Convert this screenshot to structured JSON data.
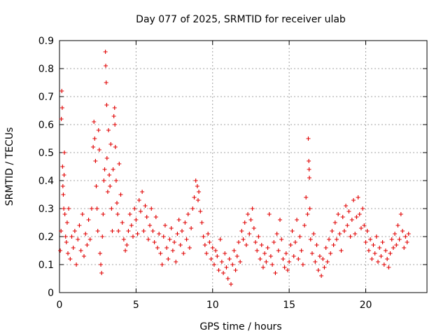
{
  "chart_data": {
    "type": "scatter",
    "title": "Day 077 of 2025, SRMTID for receiver ulab",
    "xlabel": "GPS time / hours",
    "ylabel": "SRMTID / TECUs",
    "xlim": [
      0,
      24
    ],
    "ylim": [
      0,
      0.9
    ],
    "xticks": [
      0,
      5,
      10,
      15,
      20
    ],
    "yticks": [
      0,
      0.1,
      0.2,
      0.3,
      0.4,
      0.5,
      0.6,
      0.7,
      0.8,
      0.9
    ],
    "xtick_labels": [
      "0",
      "5",
      "10",
      "15",
      "20"
    ],
    "ytick_labels": [
      "0",
      "0.1",
      "0.2",
      "0.3",
      "0.4",
      "0.5",
      "0.6",
      "0.7",
      "0.8",
      "0.9"
    ],
    "grid": true,
    "marker": "+",
    "color": "#e00000",
    "series": [
      {
        "name": "SRMTID",
        "points": [
          [
            0.05,
            0.15
          ],
          [
            0.1,
            0.22
          ],
          [
            0.12,
            0.62
          ],
          [
            0.15,
            0.72
          ],
          [
            0.18,
            0.66
          ],
          [
            0.2,
            0.45
          ],
          [
            0.22,
            0.38
          ],
          [
            0.25,
            0.35
          ],
          [
            0.28,
            0.3
          ],
          [
            0.3,
            0.42
          ],
          [
            0.32,
            0.5
          ],
          [
            0.35,
            0.28
          ],
          [
            0.4,
            0.2
          ],
          [
            0.45,
            0.18
          ],
          [
            0.5,
            0.25
          ],
          [
            0.55,
            0.14
          ],
          [
            0.6,
            0.3
          ],
          [
            0.7,
            0.12
          ],
          [
            0.8,
            0.2
          ],
          [
            0.9,
            0.16
          ],
          [
            1.0,
            0.22
          ],
          [
            1.1,
            0.1
          ],
          [
            1.2,
            0.19
          ],
          [
            1.3,
            0.24
          ],
          [
            1.4,
            0.15
          ],
          [
            1.5,
            0.28
          ],
          [
            1.6,
            0.13
          ],
          [
            1.7,
            0.21
          ],
          [
            1.8,
            0.17
          ],
          [
            1.9,
            0.26
          ],
          [
            2.0,
            0.19
          ],
          [
            2.1,
            0.3
          ],
          [
            2.2,
            0.52
          ],
          [
            2.25,
            0.61
          ],
          [
            2.3,
            0.55
          ],
          [
            2.35,
            0.47
          ],
          [
            2.4,
            0.38
          ],
          [
            2.45,
            0.3
          ],
          [
            2.5,
            0.22
          ],
          [
            2.55,
            0.58
          ],
          [
            2.6,
            0.51
          ],
          [
            2.65,
            0.14
          ],
          [
            2.7,
            0.1
          ],
          [
            2.75,
            0.07
          ],
          [
            2.8,
            0.2
          ],
          [
            2.85,
            0.28
          ],
          [
            2.9,
            0.4
          ],
          [
            2.95,
            0.44
          ],
          [
            3.0,
            0.86
          ],
          [
            3.02,
            0.81
          ],
          [
            3.05,
            0.75
          ],
          [
            3.08,
            0.67
          ],
          [
            3.1,
            0.48
          ],
          [
            3.15,
            0.36
          ],
          [
            3.2,
            0.58
          ],
          [
            3.25,
            0.42
          ],
          [
            3.3,
            0.38
          ],
          [
            3.35,
            0.53
          ],
          [
            3.4,
            0.3
          ],
          [
            3.45,
            0.22
          ],
          [
            3.5,
            0.44
          ],
          [
            3.55,
            0.63
          ],
          [
            3.6,
            0.66
          ],
          [
            3.62,
            0.6
          ],
          [
            3.65,
            0.52
          ],
          [
            3.7,
            0.4
          ],
          [
            3.75,
            0.32
          ],
          [
            3.8,
            0.28
          ],
          [
            3.85,
            0.22
          ],
          [
            3.9,
            0.46
          ],
          [
            4.0,
            0.35
          ],
          [
            4.1,
            0.25
          ],
          [
            4.2,
            0.19
          ],
          [
            4.3,
            0.15
          ],
          [
            4.4,
            0.17
          ],
          [
            4.5,
            0.22
          ],
          [
            4.6,
            0.28
          ],
          [
            4.7,
            0.24
          ],
          [
            4.8,
            0.2
          ],
          [
            4.9,
            0.3
          ],
          [
            5.0,
            0.26
          ],
          [
            5.1,
            0.21
          ],
          [
            5.2,
            0.33
          ],
          [
            5.3,
            0.29
          ],
          [
            5.4,
            0.36
          ],
          [
            5.5,
            0.22
          ],
          [
            5.6,
            0.31
          ],
          [
            5.7,
            0.27
          ],
          [
            5.8,
            0.19
          ],
          [
            5.9,
            0.24
          ],
          [
            6.0,
            0.3
          ],
          [
            6.1,
            0.22
          ],
          [
            6.2,
            0.18
          ],
          [
            6.3,
            0.27
          ],
          [
            6.4,
            0.16
          ],
          [
            6.5,
            0.21
          ],
          [
            6.6,
            0.14
          ],
          [
            6.7,
            0.1
          ],
          [
            6.8,
            0.2
          ],
          [
            6.9,
            0.24
          ],
          [
            7.0,
            0.16
          ],
          [
            7.1,
            0.12
          ],
          [
            7.2,
            0.19
          ],
          [
            7.3,
            0.23
          ],
          [
            7.4,
            0.15
          ],
          [
            7.5,
            0.18
          ],
          [
            7.6,
            0.11
          ],
          [
            7.7,
            0.21
          ],
          [
            7.8,
            0.26
          ],
          [
            7.9,
            0.17
          ],
          [
            8.0,
            0.22
          ],
          [
            8.1,
            0.14
          ],
          [
            8.2,
            0.25
          ],
          [
            8.3,
            0.19
          ],
          [
            8.4,
            0.28
          ],
          [
            8.5,
            0.16
          ],
          [
            8.6,
            0.23
          ],
          [
            8.7,
            0.3
          ],
          [
            8.8,
            0.34
          ],
          [
            8.9,
            0.4
          ],
          [
            9.0,
            0.38
          ],
          [
            9.05,
            0.33
          ],
          [
            9.1,
            0.36
          ],
          [
            9.2,
            0.29
          ],
          [
            9.3,
            0.25
          ],
          [
            9.4,
            0.2
          ],
          [
            9.5,
            0.17
          ],
          [
            9.6,
            0.14
          ],
          [
            9.7,
            0.21
          ],
          [
            9.8,
            0.18
          ],
          [
            9.9,
            0.12
          ],
          [
            10.0,
            0.16
          ],
          [
            10.1,
            0.1
          ],
          [
            10.2,
            0.15
          ],
          [
            10.3,
            0.13
          ],
          [
            10.4,
            0.08
          ],
          [
            10.5,
            0.19
          ],
          [
            10.6,
            0.11
          ],
          [
            10.7,
            0.07
          ],
          [
            10.8,
            0.14
          ],
          [
            10.9,
            0.09
          ],
          [
            11.0,
            0.05
          ],
          [
            11.1,
            0.12
          ],
          [
            11.2,
            0.03
          ],
          [
            11.3,
            0.1
          ],
          [
            11.4,
            0.15
          ],
          [
            11.5,
            0.08
          ],
          [
            11.6,
            0.13
          ],
          [
            11.7,
            0.18
          ],
          [
            11.8,
            0.11
          ],
          [
            11.9,
            0.22
          ],
          [
            12.0,
            0.19
          ],
          [
            12.1,
            0.25
          ],
          [
            12.2,
            0.17
          ],
          [
            12.3,
            0.28
          ],
          [
            12.4,
            0.21
          ],
          [
            12.5,
            0.26
          ],
          [
            12.6,
            0.3
          ],
          [
            12.7,
            0.23
          ],
          [
            12.8,
            0.18
          ],
          [
            12.9,
            0.15
          ],
          [
            13.0,
            0.2
          ],
          [
            13.1,
            0.12
          ],
          [
            13.2,
            0.17
          ],
          [
            13.3,
            0.09
          ],
          [
            13.4,
            0.14
          ],
          [
            13.5,
            0.11
          ],
          [
            13.6,
            0.16
          ],
          [
            13.7,
            0.28
          ],
          [
            13.8,
            0.13
          ],
          [
            13.9,
            0.1
          ],
          [
            14.0,
            0.18
          ],
          [
            14.1,
            0.07
          ],
          [
            14.2,
            0.21
          ],
          [
            14.3,
            0.15
          ],
          [
            14.4,
            0.26
          ],
          [
            14.5,
            0.19
          ],
          [
            14.6,
            0.12
          ],
          [
            14.7,
            0.09
          ],
          [
            14.8,
            0.14
          ],
          [
            14.9,
            0.08
          ],
          [
            15.0,
            0.11
          ],
          [
            15.1,
            0.17
          ],
          [
            15.2,
            0.22
          ],
          [
            15.3,
            0.13
          ],
          [
            15.4,
            0.18
          ],
          [
            15.5,
            0.26
          ],
          [
            15.6,
            0.12
          ],
          [
            15.7,
            0.2
          ],
          [
            15.8,
            0.15
          ],
          [
            15.9,
            0.1
          ],
          [
            16.0,
            0.24
          ],
          [
            16.1,
            0.34
          ],
          [
            16.2,
            0.28
          ],
          [
            16.25,
            0.55
          ],
          [
            16.28,
            0.47
          ],
          [
            16.3,
            0.44
          ],
          [
            16.32,
            0.41
          ],
          [
            16.35,
            0.3
          ],
          [
            16.4,
            0.19
          ],
          [
            16.5,
            0.14
          ],
          [
            16.6,
            0.21
          ],
          [
            16.7,
            0.11
          ],
          [
            16.8,
            0.17
          ],
          [
            16.9,
            0.08
          ],
          [
            17.0,
            0.13
          ],
          [
            17.1,
            0.06
          ],
          [
            17.2,
            0.12
          ],
          [
            17.3,
            0.09
          ],
          [
            17.4,
            0.16
          ],
          [
            17.5,
            0.11
          ],
          [
            17.6,
            0.19
          ],
          [
            17.7,
            0.14
          ],
          [
            17.8,
            0.22
          ],
          [
            17.9,
            0.17
          ],
          [
            18.0,
            0.25
          ],
          [
            18.1,
            0.19
          ],
          [
            18.2,
            0.28
          ],
          [
            18.3,
            0.21
          ],
          [
            18.4,
            0.15
          ],
          [
            18.5,
            0.27
          ],
          [
            18.6,
            0.22
          ],
          [
            18.7,
            0.31
          ],
          [
            18.8,
            0.24
          ],
          [
            18.9,
            0.29
          ],
          [
            19.0,
            0.2
          ],
          [
            19.1,
            0.26
          ],
          [
            19.2,
            0.33
          ],
          [
            19.3,
            0.21
          ],
          [
            19.4,
            0.27
          ],
          [
            19.5,
            0.34
          ],
          [
            19.6,
            0.28
          ],
          [
            19.7,
            0.23
          ],
          [
            19.8,
            0.3
          ],
          [
            19.9,
            0.24
          ],
          [
            20.0,
            0.18
          ],
          [
            20.1,
            0.22
          ],
          [
            20.2,
            0.15
          ],
          [
            20.3,
            0.19
          ],
          [
            20.4,
            0.12
          ],
          [
            20.5,
            0.17
          ],
          [
            20.6,
            0.14
          ],
          [
            20.7,
            0.2
          ],
          [
            20.8,
            0.11
          ],
          [
            20.9,
            0.16
          ],
          [
            21.0,
            0.13
          ],
          [
            21.1,
            0.18
          ],
          [
            21.2,
            0.1
          ],
          [
            21.3,
            0.15
          ],
          [
            21.4,
            0.12
          ],
          [
            21.5,
            0.09
          ],
          [
            21.6,
            0.14
          ],
          [
            21.7,
            0.19
          ],
          [
            21.8,
            0.16
          ],
          [
            21.9,
            0.21
          ],
          [
            22.0,
            0.17
          ],
          [
            22.1,
            0.24
          ],
          [
            22.2,
            0.19
          ],
          [
            22.3,
            0.28
          ],
          [
            22.4,
            0.22
          ],
          [
            22.5,
            0.16
          ],
          [
            22.6,
            0.2
          ],
          [
            22.7,
            0.18
          ],
          [
            22.8,
            0.21
          ]
        ]
      }
    ]
  }
}
